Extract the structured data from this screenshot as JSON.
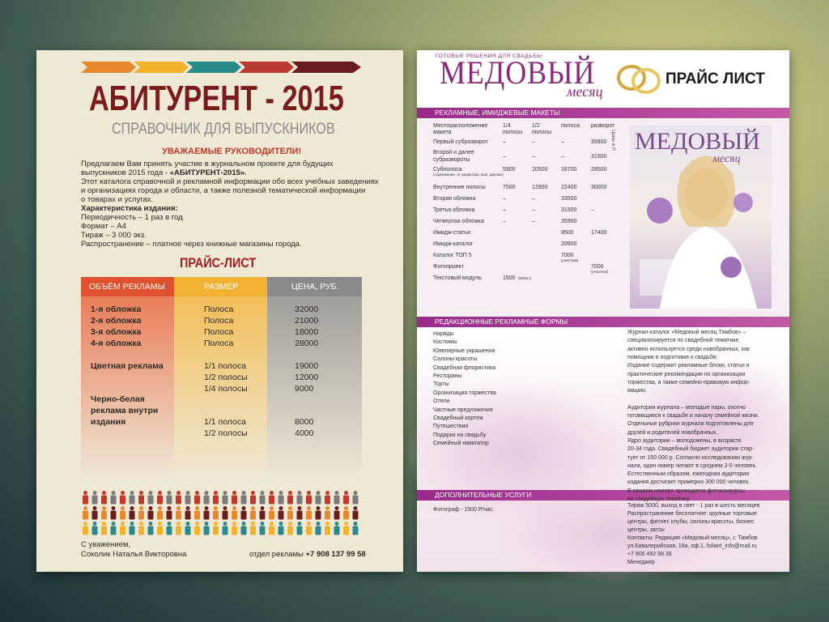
{
  "left": {
    "title": "АБИТУРЕНТ - 2015",
    "subtitle": "СПРАВОЧНИК ДЛЯ ВЫПУСКНИКОВ",
    "greeting": "УВАЖАЕМЫЕ РУКОВОДИТЕЛИ!",
    "intro_lines": [
      "Предлагаем Вам принять участие в журнальном проекте для будущих",
      "выпускников 2015 года - ",
      "Этот каталога справочной и рекламной информации обо всех учебных заведениях",
      "и организациях города и области, а также полезной тематической информации",
      "о товарах и услугах."
    ],
    "intro_bold": "«АБИТУРЕНТ-2015».",
    "specs_heading": "Характеристика издания:",
    "specs": [
      "Периодичность – 1 раз в год",
      "Формат – А4",
      "Тираж – 3 000 экз.",
      "Распространение – платное через книжные магазины города."
    ],
    "price_heading": "ПРАЙС-ЛИСТ",
    "table": {
      "headers": [
        "ОБЪЁМ РЕКЛАМЫ",
        "РАЗМЕР",
        "ЦЕНА, РУБ."
      ],
      "rows": [
        {
          "volume": [
            "1-я обложка"
          ],
          "size": "Полоса",
          "price": 32000
        },
        {
          "volume": [
            "2-я обложка"
          ],
          "size": "Полоса",
          "price": 21000
        },
        {
          "volume": [
            "3-я обложка"
          ],
          "size": "Полоса",
          "price": 18000
        },
        {
          "volume": [
            "4-я обложка"
          ],
          "size": "Полоса",
          "price": 28000
        },
        {
          "volume": [
            "Цветная реклама"
          ],
          "size": "1/1 полоса",
          "price": 19000
        },
        {
          "size": "1/2 полосы",
          "price": 12000
        },
        {
          "size": "1/4 полосы",
          "price": 9000
        },
        {
          "volume": [
            "Черно-белая",
            "реклама внутри",
            "издания"
          ],
          "size": "1/1 полоса",
          "price": 8000
        },
        {
          "size": "1/2 полосы",
          "price": 4000
        }
      ]
    },
    "signature": [
      "С уважением,",
      "Соколик Наталья Викторовна"
    ],
    "contact_label": "отдел рекламы ",
    "contact_phone": "+7 908 137 99 58"
  },
  "right": {
    "brand": "МЕДОВЫЙ",
    "brand_script": "месяц",
    "tagline": "ГОТОВЫЕ РЕШЕНИЯ ДЛЯ СВАДЬБЫ",
    "heading": "ПРАЙС ЛИСТ",
    "section1": "РЕКЛАМНЫЕ, ИМИДЖЕВЫЕ МАКЕТЫ",
    "table": {
      "headers": [
        [
          "Месторасположение",
          "макета"
        ],
        [
          "1/4",
          "полосы"
        ],
        [
          "1/2",
          "полосы"
        ],
        [
          "полоса"
        ],
        [
          "разворот"
        ]
      ],
      "rows": [
        {
          "label": [
            "Первый субразворот"
          ],
          "cells": [
            "–",
            "–",
            "–",
            "35900"
          ]
        },
        {
          "label": [
            "Второй и далее",
            "субразвороты"
          ],
          "cells": [
            "–",
            "–",
            "–",
            "31500"
          ]
        },
        {
          "label": [
            "Субполоса"
          ],
          "note": "(содержание, от редактора, вып. данные)",
          "cells": [
            "5900",
            "10500",
            "18700",
            "28500"
          ]
        },
        {
          "label": [
            "Внутренние полосы"
          ],
          "cells": [
            "7500",
            "12900",
            "22400",
            "30000"
          ]
        },
        {
          "label": [
            "Вторая обложка"
          ],
          "cells": [
            "–",
            "–",
            "33500",
            null
          ]
        },
        {
          "label": [
            "Третья обложка"
          ],
          "cells": [
            "–",
            "–",
            "31500",
            "–"
          ]
        },
        {
          "label": [
            "Четвертая обложка"
          ],
          "cells": [
            "–",
            "–",
            "35900",
            null
          ]
        },
        {
          "label": [
            "Имидж-статья"
          ],
          "cells": [
            null,
            null,
            "9500",
            "17400"
          ]
        },
        {
          "label": [
            "Имидж-каталог"
          ],
          "cells": [
            null,
            null,
            "20900",
            null
          ]
        },
        {
          "label": [
            "Каталог ТОП 5"
          ],
          "cells": [
            null,
            null,
            {
              "text": "7000",
              "note": "(участник)"
            },
            null
          ]
        },
        {
          "label": [
            "Фотопроект"
          ],
          "cells": [
            null,
            null,
            null,
            {
              "text": "7000",
              "note": "(участник)"
            }
          ]
        },
        {
          "label": [
            "Текстовый модуль"
          ],
          "cells": [
            {
              "text": "1500",
              "note": "(500зн.)"
            },
            null,
            null,
            null
          ]
        }
      ]
    },
    "price_unit": "Цены в Р.",
    "cover_title": "МЕДОВЫЙ",
    "cover_script": "месяц",
    "section2": "РЕДАКЦИОННЫЕ РЕКЛАМНЫЕ ФОРМЫ",
    "forms": [
      "Наряды",
      "Костюмы",
      "Ювелирные украшения",
      "Салоны красоты",
      "Свадебная флористика",
      "Рестораны",
      "Торты",
      "Организация торжества",
      "Отели",
      "Частные предложения",
      "Свадебный кортеж",
      "Путешествия",
      "Подарки на свадьбу",
      "Семейный навигатор"
    ],
    "description": [
      [
        "Журнал-каталог «Медовый месяц Тамбов» –",
        "специализируется по свадебной тематике,",
        "активно используется среди новобрачных, как",
        "помощник в подготовке к свадьбе.",
        "Издание содержит рекламные блоки, статьи и",
        "практические рекомендации по организации",
        "торжества, а также семейно-правовую инфор-",
        "мацию."
      ],
      [
        "Аудитория журнала – молодые пары, охотно",
        "готовящиеся к свадьбе и началу семейной жизни.",
        "Отдельные рубрики журнала подготовлены для",
        "друзей и родителей новобрачных.",
        "Ядро аудитории –  молодожены, в возрасте",
        "20-34 года. Свадебный бюджет аудитории стар-",
        "тует от 150 000 р. Согласно исследованию жур-",
        "нала, один номер читают в среднем 2-5 человек.",
        "Естественным образом,  ежегодная аудитория",
        "издания достигает примерно 300 000 человек.",
        "В каждом номере проводятся фотоконкурсы",
        "на свадебную тематику."
      ]
    ],
    "section3": "ДОПОЛНИТЕЛЬНЫЕ УСЛУГИ",
    "service": "Фотограф - 1500 Р/час.",
    "contacts": [
      "Тираж 5000, выход в свет - 1 раз в шесть месяцев",
      "Распространение бесплатное: крупные торговые",
      "центры, фитнес клубы, салоны красоты, бизнес",
      "центры, загсы",
      "Контакты: Редакция «Медовый месяц», г. Тамбов",
      "ул.Кавалерийская, 18а, оф.1, foliant_info@mail.ru",
      "+7 900 492 98 39",
      "Менеджер"
    ]
  }
}
